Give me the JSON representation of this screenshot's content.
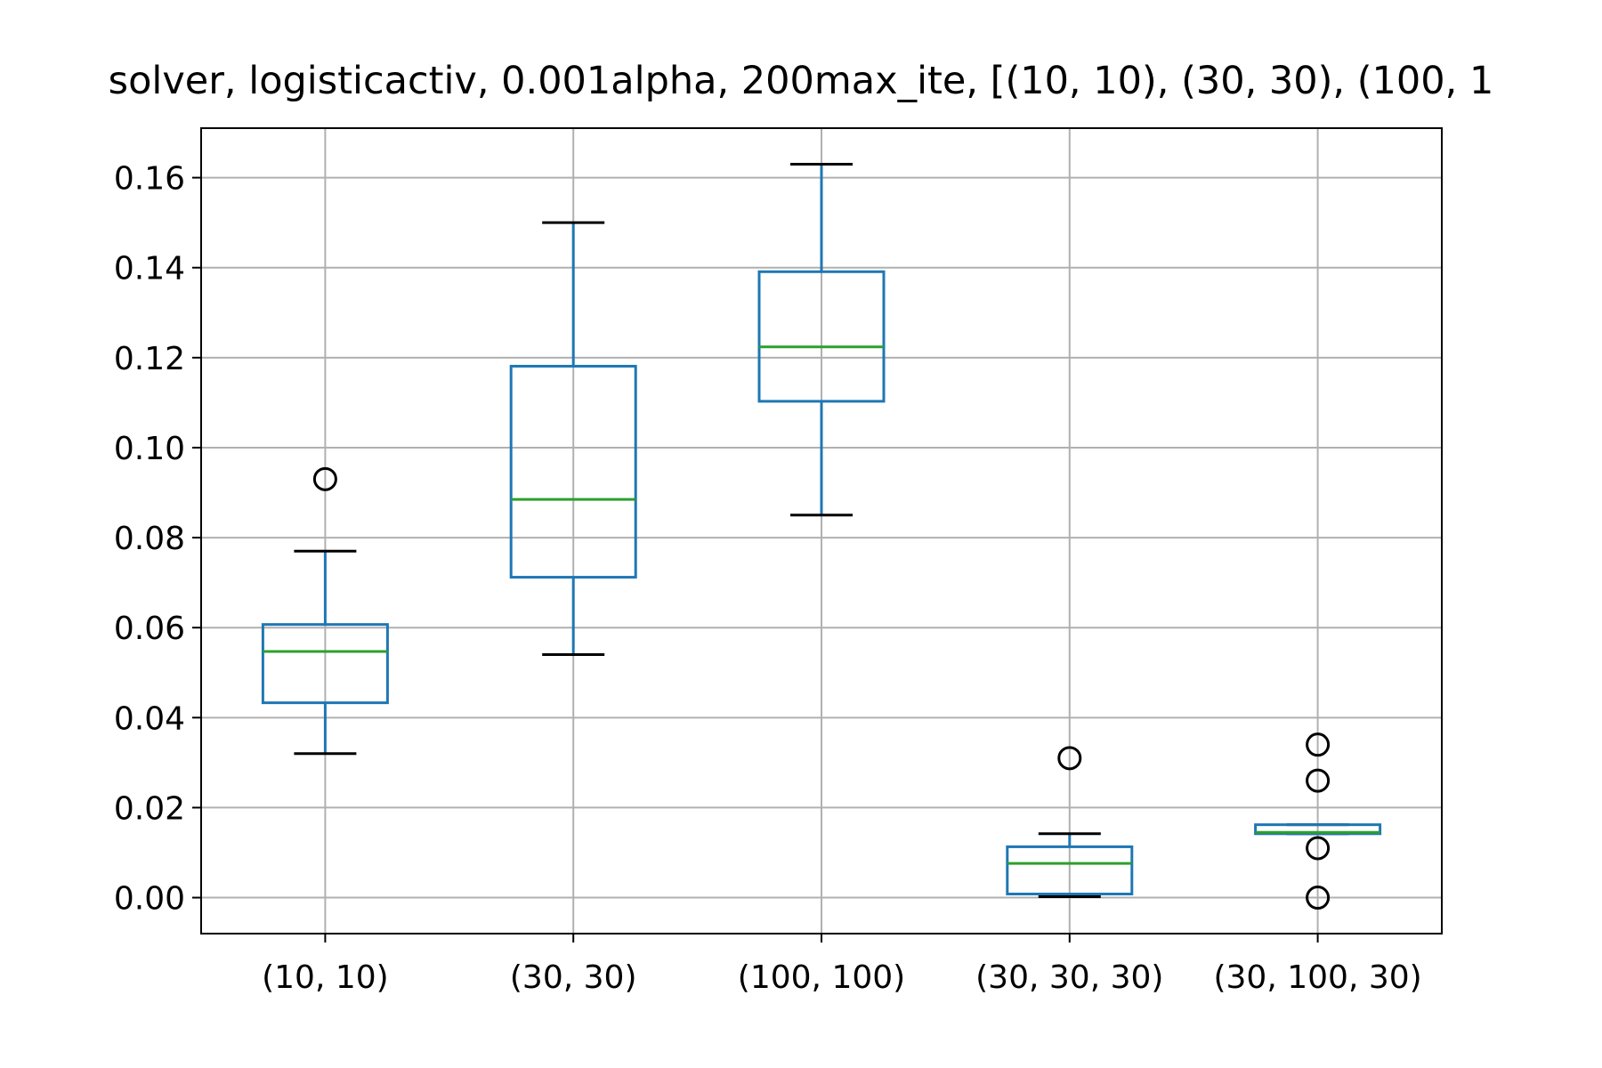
{
  "chart_data": {
    "type": "box",
    "title": "solver, logisticactiv, 0.001alpha, 200max_ite, [(10, 10), (30, 30), (100, 1",
    "xlabel": "",
    "ylabel": "",
    "ylim": [
      -0.008,
      0.171
    ],
    "yticks": [
      0.0,
      0.02,
      0.04,
      0.06,
      0.08,
      0.1,
      0.12,
      0.14,
      0.16
    ],
    "ytick_labels": [
      "0.00",
      "0.02",
      "0.04",
      "0.06",
      "0.08",
      "0.10",
      "0.12",
      "0.14",
      "0.16"
    ],
    "grid": true,
    "categories": [
      "(10, 10)",
      "(30, 30)",
      "(100, 100)",
      "(30, 30, 30)",
      "(30, 100, 30)"
    ],
    "boxes": [
      {
        "label": "(10, 10)",
        "whisker_low": 0.032,
        "q1": 0.0433,
        "median": 0.0547,
        "q3": 0.0607,
        "whisker_high": 0.077,
        "fliers": [
          0.093
        ]
      },
      {
        "label": "(30, 30)",
        "whisker_low": 0.054,
        "q1": 0.0712,
        "median": 0.0885,
        "q3": 0.1181,
        "whisker_high": 0.15,
        "fliers": []
      },
      {
        "label": "(100, 100)",
        "whisker_low": 0.085,
        "q1": 0.1103,
        "median": 0.1224,
        "q3": 0.1391,
        "whisker_high": 0.163,
        "fliers": []
      },
      {
        "label": "(30, 30, 30)",
        "whisker_low": 0.0002,
        "q1": 0.0008,
        "median": 0.0076,
        "q3": 0.0113,
        "whisker_high": 0.0142,
        "fliers": [
          0.031
        ]
      },
      {
        "label": "(30, 100, 30)",
        "whisker_low": 0.0142,
        "q1": 0.0142,
        "median": 0.0145,
        "q3": 0.0162,
        "whisker_high": 0.0162,
        "fliers": [
          0.034,
          0.026,
          0.011,
          0.0
        ]
      }
    ],
    "colors": {
      "box": "#1f77b4",
      "median": "#2ca02c",
      "whisker_cap": "#000000",
      "grid": "#b0b0b0",
      "flier": "#000000"
    }
  }
}
